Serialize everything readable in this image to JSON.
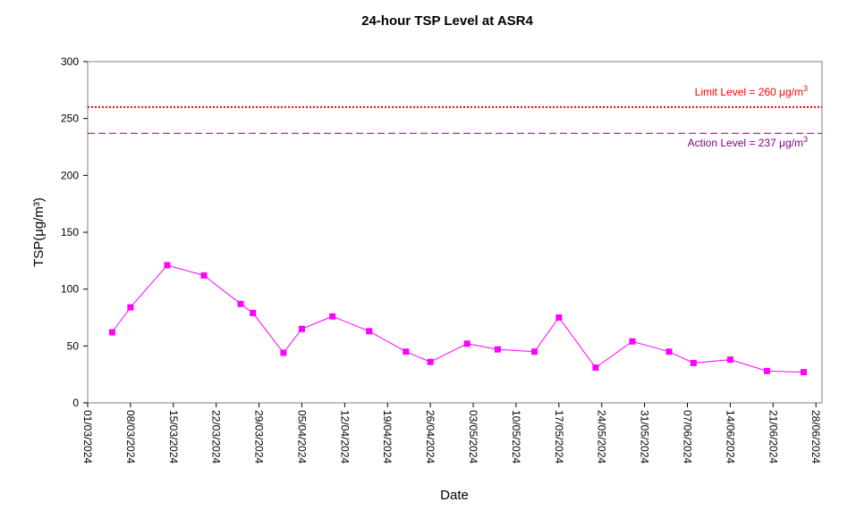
{
  "chart_data": {
    "type": "line",
    "title": "24-hour TSP Level at ASR4",
    "xlabel": "Date",
    "ylabel": "TSP(μg/m³)",
    "ylim": [
      0,
      300
    ],
    "yticks": [
      0,
      50,
      100,
      150,
      200,
      250,
      300
    ],
    "xlim": [
      "2024-03-01",
      "2024-06-29"
    ],
    "xtick_labels": [
      "01/03/2024",
      "08/03/2024",
      "15/03/2024",
      "22/03/2024",
      "29/03/2024",
      "05/04/2024",
      "12/04/2024",
      "19/04/2024",
      "26/04/2024",
      "03/05/2024",
      "10/05/2024",
      "17/05/2024",
      "24/05/2024",
      "31/05/2024",
      "07/06/2024",
      "14/06/2024",
      "21/06/2024",
      "28/06/2024"
    ],
    "grid": false,
    "series": [
      {
        "color": "#ff00ff",
        "x": [
          "2024-03-05",
          "2024-03-08",
          "2024-03-14",
          "2024-03-20",
          "2024-03-26",
          "2024-03-28",
          "2024-04-02",
          "2024-04-05",
          "2024-04-10",
          "2024-04-16",
          "2024-04-22",
          "2024-04-26",
          "2024-05-02",
          "2024-05-07",
          "2024-05-13",
          "2024-05-17",
          "2024-05-23",
          "2024-05-29",
          "2024-06-04",
          "2024-06-08",
          "2024-06-14",
          "2024-06-20",
          "2024-06-26"
        ],
        "values": [
          62,
          84,
          121,
          112,
          87,
          79,
          44,
          65,
          76,
          63,
          45,
          36,
          52,
          47,
          45,
          75,
          31,
          54,
          45,
          35,
          38,
          28,
          27
        ]
      }
    ],
    "reference_lines": [
      {
        "label_main": "Limit Level  = 260 μg/m",
        "label_sup": "3",
        "value": 260,
        "color": "#ff0000",
        "style": "dotted"
      },
      {
        "label_main": "Action Level  = 237 μg/m",
        "label_sup": "3",
        "value": 237,
        "color": "#800080",
        "style": "dashed"
      }
    ]
  }
}
